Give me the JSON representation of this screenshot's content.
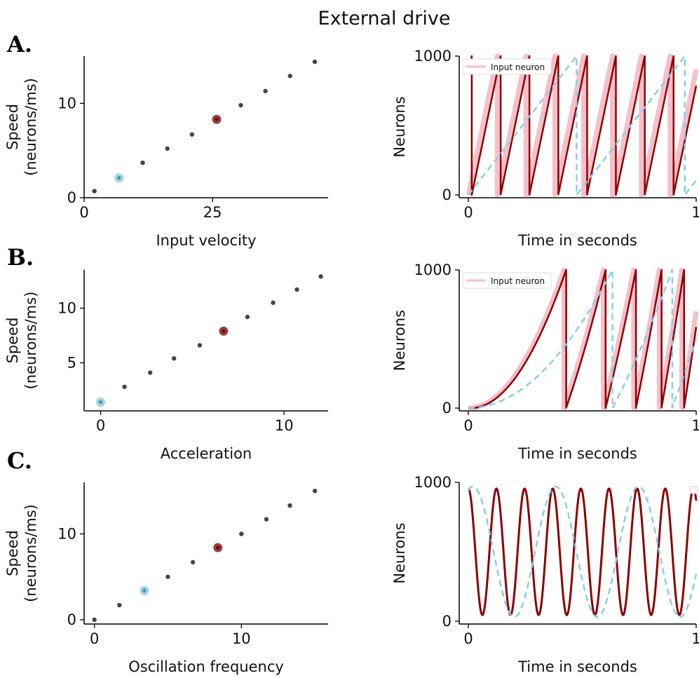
{
  "figure": {
    "title": "External drive",
    "panel_labels": [
      "A.",
      "B.",
      "C."
    ]
  },
  "colors": {
    "dark_red": "#8b0000",
    "pink": "#f7bfca",
    "light_blue": "#87ceeb",
    "gray_point": "#454545",
    "highlight_red": "#a83a3a",
    "highlight_blue": "#9fd4ea",
    "axis": "#000000"
  },
  "chart_data": [
    {
      "id": "A-speed",
      "type": "scatter",
      "xlabel": "Input velocity",
      "ylabel_lines": [
        "Speed",
        "(neurons/ms)"
      ],
      "xlim": [
        0,
        47.5
      ],
      "ylim": [
        0,
        15.0
      ],
      "xticks": [
        0,
        25
      ],
      "yticks": [
        0,
        10
      ],
      "points": [
        {
          "x": 2.0,
          "y": 0.7
        },
        {
          "x": 11.4,
          "y": 3.7
        },
        {
          "x": 16.2,
          "y": 5.2
        },
        {
          "x": 21.0,
          "y": 6.7
        },
        {
          "x": 30.5,
          "y": 9.8
        },
        {
          "x": 35.3,
          "y": 11.3
        },
        {
          "x": 40.1,
          "y": 12.9
        },
        {
          "x": 44.9,
          "y": 14.4
        }
      ],
      "highlight_blue": {
        "x": 6.8,
        "y": 2.1
      },
      "highlight_red": {
        "x": 25.8,
        "y": 8.3
      }
    },
    {
      "id": "A-neurons",
      "type": "line",
      "xlabel": "Time in seconds",
      "ylabel": "Neurons",
      "xlim": [
        -0.04,
        1.0
      ],
      "ylim": [
        -20,
        1000
      ],
      "xticks": [
        0,
        1
      ],
      "yticks": [
        0,
        1000
      ],
      "legend": {
        "label": "Input neuron",
        "position": "top-left"
      },
      "series": [
        {
          "name": "Input neuron",
          "kind": "sawtooth",
          "period": 0.1265,
          "phase": 0.0,
          "color": "pink",
          "width": 7
        },
        {
          "kind": "sawtooth",
          "period": 0.1265,
          "phase": 0.015,
          "color": "dark_red",
          "width": 2.5
        },
        {
          "kind": "sawtooth",
          "period": 0.475,
          "phase": 0.0,
          "color": "light_blue",
          "width": 2.5,
          "dashed": true
        }
      ]
    },
    {
      "id": "B-speed",
      "type": "scatter",
      "xlabel": "Acceleration",
      "ylabel_lines": [
        "Speed",
        "(neurons/ms)"
      ],
      "xlim": [
        -0.9,
        12.4
      ],
      "ylim": [
        0.6,
        13.5
      ],
      "xticks": [
        0,
        10
      ],
      "yticks": [
        5,
        10
      ],
      "points": [
        {
          "x": 1.3,
          "y": 2.8
        },
        {
          "x": 2.7,
          "y": 4.1
        },
        {
          "x": 4.0,
          "y": 5.4
        },
        {
          "x": 5.4,
          "y": 6.6
        },
        {
          "x": 8.0,
          "y": 9.2
        },
        {
          "x": 9.4,
          "y": 10.5
        },
        {
          "x": 10.7,
          "y": 11.7
        },
        {
          "x": 12.0,
          "y": 12.9
        }
      ],
      "highlight_blue": {
        "x": 0.0,
        "y": 1.4
      },
      "highlight_red": {
        "x": 6.7,
        "y": 7.9
      }
    },
    {
      "id": "B-neurons",
      "type": "line",
      "xlabel": "Time in seconds",
      "ylabel": "Neurons",
      "xlim": [
        -0.04,
        1.0
      ],
      "ylim": [
        -20,
        1000
      ],
      "xticks": [
        0,
        1
      ],
      "yticks": [
        0,
        1000
      ],
      "legend": {
        "label": "Input neuron",
        "position": "top-left"
      },
      "series": [
        {
          "name": "Input neuron",
          "kind": "accel",
          "rate": 5700,
          "color": "pink",
          "width": 7
        },
        {
          "kind": "accel",
          "rate": 5700,
          "phase": 0.01,
          "color": "dark_red",
          "width": 2.5
        },
        {
          "kind": "accel",
          "rate": 2500,
          "color": "light_blue",
          "width": 2.5,
          "dashed": true
        }
      ]
    },
    {
      "id": "C-speed",
      "type": "scatter",
      "xlabel": "Oscillation frequency",
      "ylabel_lines": [
        "Speed",
        "(neurons/ms)"
      ],
      "xlim": [
        -0.7,
        15.9
      ],
      "ylim": [
        -0.5,
        16.0
      ],
      "xticks": [
        0,
        10
      ],
      "yticks": [
        0,
        10
      ],
      "points": [
        {
          "x": 0.0,
          "y": 0.0
        },
        {
          "x": 1.7,
          "y": 1.7
        },
        {
          "x": 5.0,
          "y": 5.0
        },
        {
          "x": 6.7,
          "y": 6.7
        },
        {
          "x": 10.0,
          "y": 10.0
        },
        {
          "x": 11.7,
          "y": 11.7
        },
        {
          "x": 13.3,
          "y": 13.3
        },
        {
          "x": 15.0,
          "y": 15.0
        }
      ],
      "highlight_blue": {
        "x": 3.4,
        "y": 3.4
      },
      "highlight_red": {
        "x": 8.4,
        "y": 8.4
      }
    },
    {
      "id": "C-neurons",
      "type": "line",
      "xlabel": "Time in seconds",
      "ylabel": "Neurons",
      "xlim": [
        -0.04,
        1.0
      ],
      "ylim": [
        -20,
        1000
      ],
      "xticks": [
        0,
        1
      ],
      "yticks": [
        0,
        1000
      ],
      "legend": {
        "label": "",
        "position": "top-right"
      },
      "series": [
        {
          "kind": "cos",
          "freq": 8.1,
          "mid": 500,
          "amp": 455,
          "color": "dark_red",
          "width": 3
        },
        {
          "kind": "cos",
          "freq": 2.75,
          "phase": 0.02,
          "mid": 500,
          "amp": 470,
          "color": "light_blue",
          "width": 2.5,
          "dashed": true
        }
      ]
    }
  ]
}
